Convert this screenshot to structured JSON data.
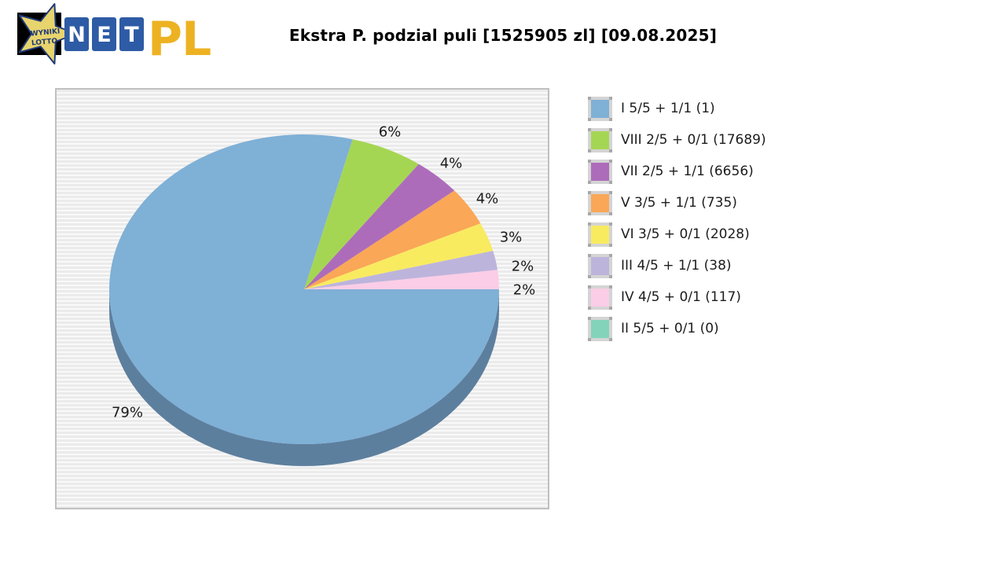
{
  "logo": {
    "star_text_line1": "WYNIKI",
    "star_text_line2": "LOTTO",
    "tiles": [
      "N",
      "E",
      "T"
    ],
    "suffix": "PL",
    "colors": {
      "star": "#e8d46d",
      "star_outline": "#203a78",
      "tile": "#2e5ba5",
      "suffix": "#edb222"
    }
  },
  "title": "Ekstra P. podzial puli [1525905 zl] [09.08.2025]",
  "chart_data": {
    "type": "pie",
    "style": "3d-pie",
    "title": "Ekstra P. podzial puli [1525905 zl] [09.08.2025]",
    "pool_amount_zl": 1525905,
    "draw_date": "09.08.2025",
    "legend_position": "right",
    "side_color": "#5d7f9e",
    "slices": [
      {
        "legend": "I 5/5 + 1/1 (1)",
        "tier": "I",
        "match": "5/5 + 1/1",
        "winners": 1,
        "percent": 79,
        "percent_label": "79%",
        "color": "#7fb0d6"
      },
      {
        "legend": "VIII 2/5 + 0/1 (17689)",
        "tier": "VIII",
        "match": "2/5 + 0/1",
        "winners": 17689,
        "percent": 6,
        "percent_label": "6%",
        "color": "#a5d653"
      },
      {
        "legend": "VII 2/5 + 1/1 (6656)",
        "tier": "VII",
        "match": "2/5 + 1/1",
        "winners": 6656,
        "percent": 4,
        "percent_label": "4%",
        "color": "#ad6cba"
      },
      {
        "legend": "V 3/5 + 1/1 (735)",
        "tier": "V",
        "match": "3/5 + 1/1",
        "winners": 735,
        "percent": 4,
        "percent_label": "4%",
        "color": "#faa757"
      },
      {
        "legend": "VI 3/5 + 0/1 (2028)",
        "tier": "VI",
        "match": "3/5 + 0/1",
        "winners": 2028,
        "percent": 3,
        "percent_label": "3%",
        "color": "#f8eb60"
      },
      {
        "legend": "III 4/5 + 1/1 (38)",
        "tier": "III",
        "match": "4/5 + 1/1",
        "winners": 38,
        "percent": 2,
        "percent_label": "2%",
        "color": "#bdb4dc"
      },
      {
        "legend": "IV 4/5 + 0/1 (117)",
        "tier": "IV",
        "match": "4/5 + 0/1",
        "winners": 117,
        "percent": 2,
        "percent_label": "2%",
        "color": "#fbcde6"
      },
      {
        "legend": "II 5/5 + 0/1 (0)",
        "tier": "II",
        "match": "5/5 + 0/1",
        "winners": 0,
        "percent": 0,
        "percent_label": "",
        "color": "#83d3ba"
      }
    ]
  }
}
